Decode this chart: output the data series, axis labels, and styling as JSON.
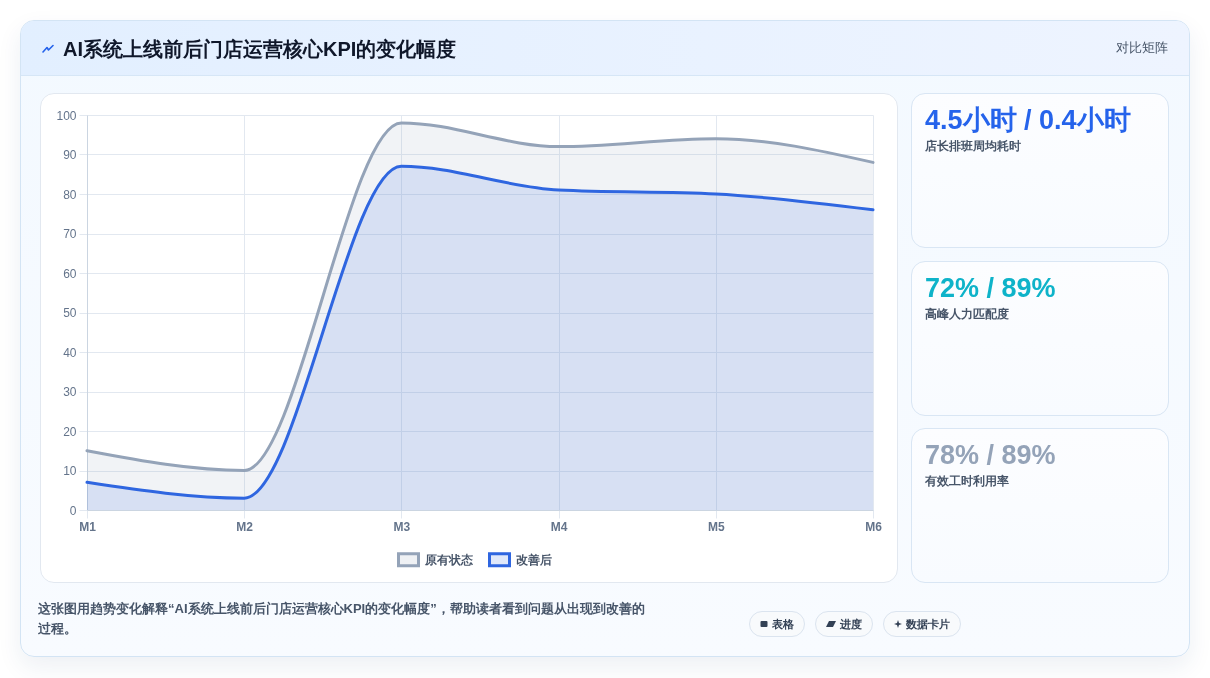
{
  "chart_data": [
    {
      "type": "area",
      "title": "AI系统上线前后门店运营核心KPI的变化幅度",
      "categories": [
        "M1",
        "M2",
        "M3",
        "M4",
        "M5",
        "M6"
      ],
      "series": [
        {
          "name": "原有状态",
          "color": "#94a3b8",
          "values": [
            15,
            10,
            98,
            92,
            94,
            88
          ]
        },
        {
          "name": "改善后",
          "color": "#2f66e0",
          "values": [
            7,
            3,
            87,
            81,
            80,
            76
          ]
        }
      ],
      "ylim": [
        0,
        100
      ],
      "yticks": [
        0,
        10,
        20,
        30,
        40,
        50,
        60,
        70,
        80,
        90,
        100
      ],
      "grid": true,
      "legend": "bottom",
      "annotations": [
        "这张图用趋势变化解释“AI系统上线前后门店运营核心KPI的变化幅度”，帮助读者看到问题从出现到改善的过程。",
        "表格",
        "进度",
        "数据卡片"
      ]
    },
    {
      "type": "other",
      "title": "4.5小时 / 0.4小时",
      "subtitle": "店长排班周均耗时",
      "color": "#2563eb",
      "annotations": [
        "对比矩阵"
      ]
    },
    {
      "type": "other",
      "title": "72% / 89%",
      "subtitle": "高峰人力匹配度",
      "color": "#0eb3c9"
    },
    {
      "type": "other",
      "title": "78% / 89%",
      "subtitle": "有效工时利用率",
      "color": "#94a3b8"
    }
  ]
}
